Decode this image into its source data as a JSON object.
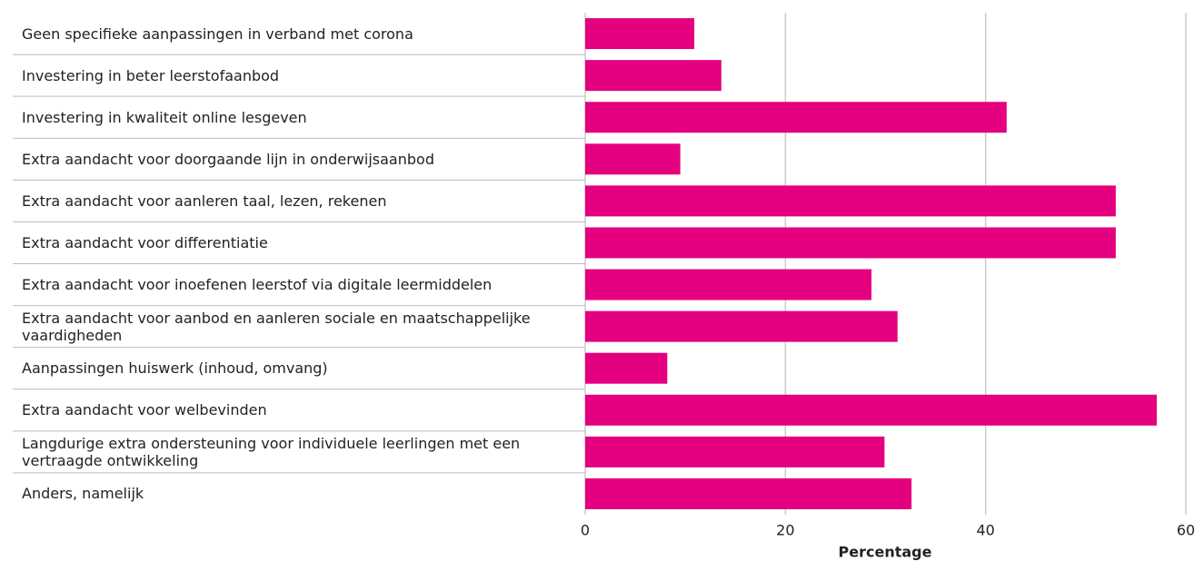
{
  "chart_data": {
    "type": "bar",
    "orientation": "horizontal",
    "categories": [
      "Geen specifieke aanpassingen in verband met corona",
      "Investering in beter leerstofaanbod",
      "Investering in kwaliteit online lesgeven",
      "Extra aandacht voor doorgaande lijn in onderwijsaanbod",
      "Extra aandacht voor aanleren taal, lezen, rekenen",
      "Extra aandacht voor differentiatie",
      "Extra aandacht voor inoefenen leerstof via digitale leermiddelen",
      "Extra aandacht voor aanbod en aanleren sociale en maatschappelijke vaardigheden",
      "Aanpassingen huiswerk (inhoud, omvang)",
      "Extra aandacht voor welbevinden",
      "Langdurige extra ondersteuning voor individuele leerlingen met een vertraagde ontwikkeling",
      "Anders, namelijk"
    ],
    "values": [
      10.9,
      13.6,
      42.1,
      9.5,
      53,
      53,
      28.6,
      31.2,
      8.2,
      57.1,
      29.9,
      32.6
    ],
    "color": "#e4007e",
    "xlabel": "Percentage",
    "xlim": [
      0,
      60
    ],
    "xticks": [
      0,
      20,
      40,
      60
    ],
    "grid": true
  }
}
